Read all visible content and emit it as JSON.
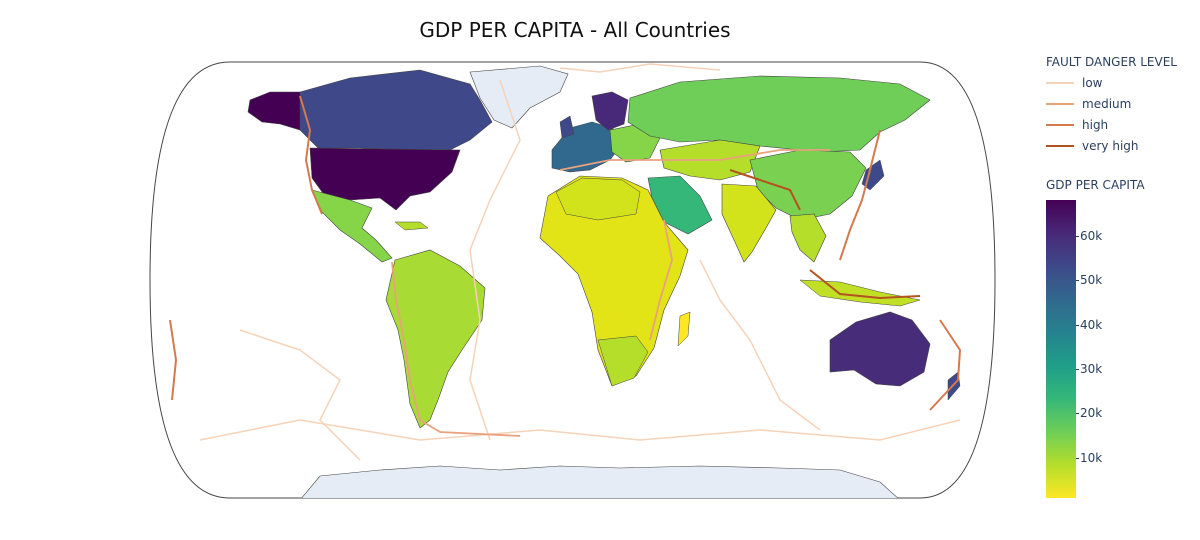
{
  "chart_data": {
    "type": "choropleth",
    "title": "GDP PER CAPITA - All Countries",
    "projection": "natural earth",
    "fault_legend": {
      "title": "FAULT DANGER LEVEL",
      "items": [
        {
          "label": "low",
          "color": "#f6d2b8"
        },
        {
          "label": "medium",
          "color": "#e9a27d"
        },
        {
          "label": "high",
          "color": "#d37a4f"
        },
        {
          "label": "very high",
          "color": "#b4531f"
        }
      ]
    },
    "colorbar": {
      "title": "GDP PER CAPITA",
      "colorscale": "Viridis (reversed)",
      "range": [
        1000,
        68000
      ],
      "ticks": [
        {
          "label": "60k",
          "value": 60000
        },
        {
          "label": "50k",
          "value": 50000
        },
        {
          "label": "40k",
          "value": 40000
        },
        {
          "label": "30k",
          "value": 30000
        },
        {
          "label": "20k",
          "value": 20000
        },
        {
          "label": "10k",
          "value": 10000
        }
      ]
    },
    "colors": {
      "ocean": "#ffffff",
      "no_data": "#e5ecf6",
      "country_border": "#444444"
    }
  }
}
